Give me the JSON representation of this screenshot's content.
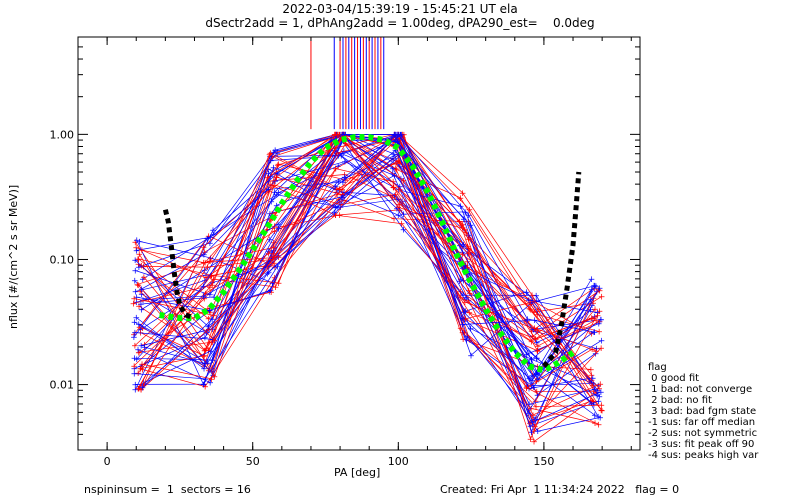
{
  "chart_data": {
    "type": "scatter",
    "title_line1": "2022-03-04/15:39:19 - 15:45:21 UT ela",
    "title_line2": "dSectr2add = 1, dPhAng2add = 1.00deg, dPA290_est=    0.0deg",
    "xlabel": "PA [deg]",
    "ylabel": "nflux [#/(cm^2 s sr MeV)]",
    "xlim": [
      -10,
      183
    ],
    "ylim": [
      0.003,
      6.0
    ],
    "yscale": "log",
    "xticks": [
      0,
      50,
      100,
      150
    ],
    "yticks": [
      {
        "value": 0.01,
        "label": "0.01"
      },
      {
        "value": 0.1,
        "label": "0.10"
      },
      {
        "value": 1.0,
        "label": "1.00"
      }
    ],
    "grid": false,
    "colors": {
      "red": "#ff0000",
      "blue": "#0000ff",
      "fit_black": "#000000",
      "fit_green": "#00ff00"
    },
    "fit_black": [
      {
        "x": 20,
        "y": 0.25
      },
      {
        "x": 21,
        "y": 0.2
      },
      {
        "x": 22,
        "y": 0.13
      },
      {
        "x": 23,
        "y": 0.08
      },
      {
        "x": 24,
        "y": 0.055
      },
      {
        "x": 25,
        "y": 0.043
      },
      {
        "x": 27,
        "y": 0.036
      },
      {
        "x": 30,
        "y": 0.034
      }
    ],
    "fit_green": [
      {
        "x": 18,
        "y": 0.036
      },
      {
        "x": 25,
        "y": 0.034
      },
      {
        "x": 30,
        "y": 0.034
      },
      {
        "x": 35,
        "y": 0.04
      },
      {
        "x": 40,
        "y": 0.055
      },
      {
        "x": 45,
        "y": 0.08
      },
      {
        "x": 50,
        "y": 0.12
      },
      {
        "x": 55,
        "y": 0.18
      },
      {
        "x": 60,
        "y": 0.28
      },
      {
        "x": 65,
        "y": 0.42
      },
      {
        "x": 70,
        "y": 0.6
      },
      {
        "x": 75,
        "y": 0.78
      },
      {
        "x": 80,
        "y": 0.9
      },
      {
        "x": 85,
        "y": 0.95
      },
      {
        "x": 90,
        "y": 0.95
      },
      {
        "x": 95,
        "y": 0.9
      },
      {
        "x": 100,
        "y": 0.78
      },
      {
        "x": 105,
        "y": 0.55
      },
      {
        "x": 110,
        "y": 0.35
      },
      {
        "x": 115,
        "y": 0.2
      },
      {
        "x": 120,
        "y": 0.11
      },
      {
        "x": 125,
        "y": 0.065
      },
      {
        "x": 130,
        "y": 0.04
      },
      {
        "x": 135,
        "y": 0.026
      },
      {
        "x": 140,
        "y": 0.018
      },
      {
        "x": 145,
        "y": 0.014
      },
      {
        "x": 150,
        "y": 0.013
      },
      {
        "x": 155,
        "y": 0.015
      },
      {
        "x": 160,
        "y": 0.018
      }
    ],
    "fit_black_right": [
      {
        "x": 150,
        "y": 0.014
      },
      {
        "x": 154,
        "y": 0.018
      },
      {
        "x": 156,
        "y": 0.03
      },
      {
        "x": 158,
        "y": 0.06
      },
      {
        "x": 160,
        "y": 0.13
      },
      {
        "x": 161,
        "y": 0.25
      },
      {
        "x": 162,
        "y": 0.5
      }
    ],
    "spikes": {
      "x": [
        70,
        78,
        80,
        81,
        82,
        83,
        84,
        85,
        86,
        87,
        88,
        89,
        90,
        91,
        92,
        93,
        94,
        95
      ],
      "ymin": 1.1,
      "ymax": 6.0
    },
    "legend": {
      "title": "flag",
      "entries": [
        " 0 good fit",
        " 1 bad: not converge",
        " 2 bad: no fit",
        " 3 bad: bad fgm state",
        "-1 sus: far off median",
        "-2 sus: not symmetric",
        "-3 sus: fit peak off 90",
        "-4 sus: peaks high var"
      ]
    }
  },
  "footer": {
    "left": "nspininsum =  1  sectors = 16",
    "right": "Created: Fri Apr  1 11:34:24 2022   flag = 0"
  }
}
